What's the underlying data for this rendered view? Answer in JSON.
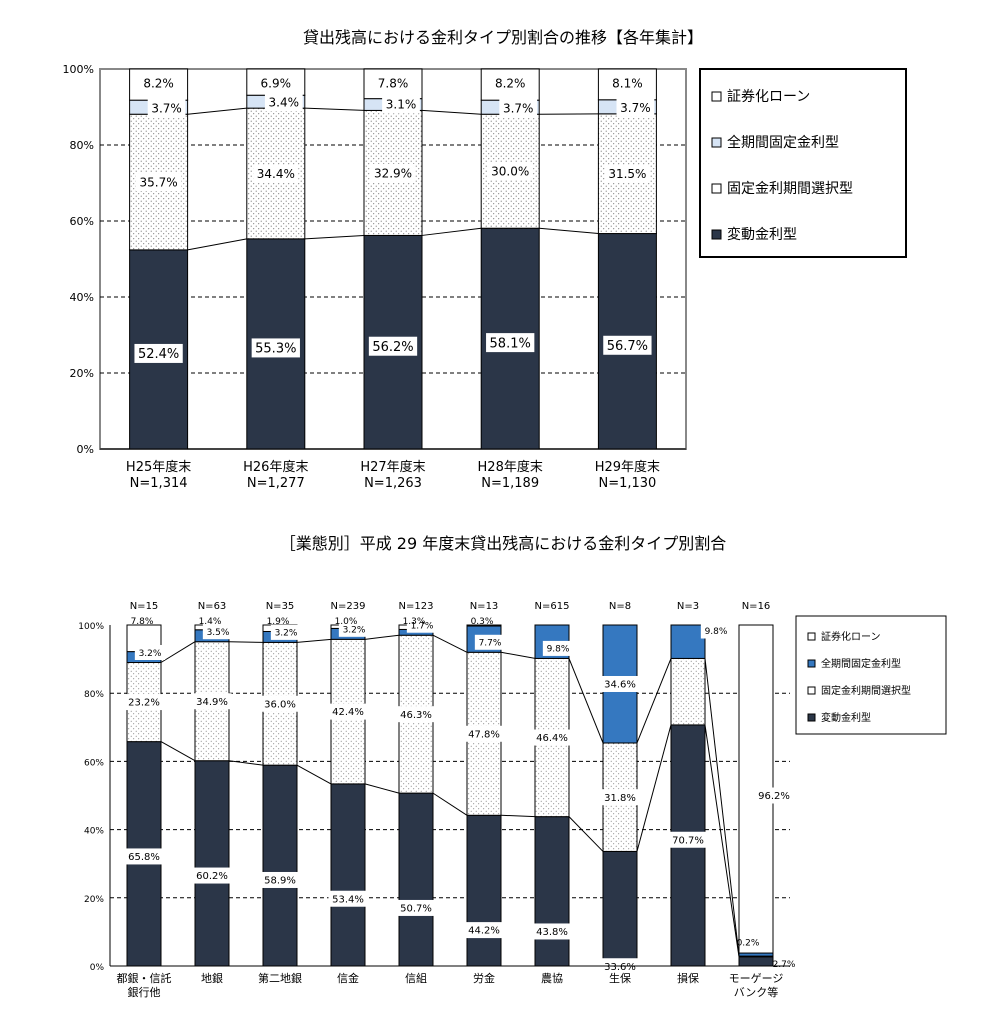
{
  "chart_data": [
    {
      "type": "bar",
      "stacked": true,
      "title": "貸出残高における金利タイプ別割合の推移【各年集計】",
      "categories": [
        "H25年度末",
        "H26年度末",
        "H27年度末",
        "H28年度末",
        "H29年度末"
      ],
      "n_labels": [
        "N=1,314",
        "N=1,277",
        "N=1,263",
        "N=1,189",
        "N=1,130"
      ],
      "y_ticks": [
        "0%",
        "20%",
        "40%",
        "60%",
        "80%",
        "100%"
      ],
      "ylim": [
        0,
        100
      ],
      "grid": true,
      "legend_position": "right",
      "series": [
        {
          "name": "変動金利型",
          "values": [
            52.4,
            55.3,
            56.2,
            58.1,
            56.7
          ],
          "labels": [
            "52.4%",
            "55.3%",
            "56.2%",
            "58.1%",
            "56.7%"
          ]
        },
        {
          "name": "固定金利期間選択型",
          "values": [
            35.7,
            34.4,
            32.9,
            30.0,
            31.5
          ],
          "labels": [
            "35.7%",
            "34.4%",
            "32.9%",
            "30.0%",
            "31.5%"
          ]
        },
        {
          "name": "全期間固定金利型",
          "values": [
            3.7,
            3.4,
            3.1,
            3.7,
            3.7
          ],
          "labels": [
            "3.7%",
            "3.4%",
            "3.1%",
            "3.7%",
            "3.7%"
          ]
        },
        {
          "name": "証券化ローン",
          "values": [
            8.2,
            6.9,
            7.8,
            8.2,
            8.1
          ],
          "labels": [
            "8.2%",
            "6.9%",
            "7.8%",
            "8.2%",
            "8.1%"
          ]
        }
      ],
      "colors": {
        "floating": "#2b3648",
        "fixed_period": "#ffffff",
        "full_fixed": "#d6e4f5",
        "securitized": "#ffffff"
      }
    },
    {
      "type": "bar",
      "stacked": true,
      "title": "［業態別］平成 29 年度末貸出残高における金利タイプ別割合",
      "categories": [
        "都銀・信託\n銀行他",
        "地銀",
        "第二地銀",
        "信金",
        "信組",
        "労金",
        "農協",
        "生保",
        "損保",
        "モーゲージ\nバンク等"
      ],
      "n_labels": [
        "N=15",
        "N=63",
        "N=35",
        "N=239",
        "N=123",
        "N=13",
        "N=615",
        "N=8",
        "N=3",
        "N=16"
      ],
      "y_ticks": [
        "0%",
        "20%",
        "40%",
        "60%",
        "80%",
        "100%"
      ],
      "ylim": [
        0,
        100
      ],
      "grid": true,
      "legend_position": "right",
      "series": [
        {
          "name": "変動金利型",
          "values": [
            65.8,
            60.2,
            58.9,
            53.4,
            50.7,
            44.2,
            43.8,
            33.6,
            70.7,
            2.7
          ],
          "labels": [
            "65.8%",
            "60.2%",
            "58.9%",
            "53.4%",
            "50.7%",
            "44.2%",
            "43.8%",
            "33.6%",
            "70.7%",
            "2.7%"
          ]
        },
        {
          "name": "固定金利期間選択型",
          "values": [
            23.2,
            34.9,
            36.0,
            42.4,
            46.3,
            47.8,
            46.4,
            31.8,
            19.5,
            0.2
          ],
          "labels": [
            "23.2%",
            "34.9%",
            "36.0%",
            "42.4%",
            "46.3%",
            "47.8%",
            "46.4%",
            "31.8%",
            "",
            "0.2%"
          ]
        },
        {
          "name": "全期間固定金利型",
          "values": [
            3.2,
            3.5,
            3.2,
            3.2,
            1.7,
            7.7,
            9.8,
            34.6,
            9.8,
            0.9
          ],
          "labels": [
            "3.2%",
            "3.5%",
            "3.2%",
            "3.2%",
            "1.7%",
            "7.7%",
            "9.8%",
            "34.6%",
            "9.8%",
            ""
          ]
        },
        {
          "name": "証券化ローン",
          "values": [
            7.8,
            1.4,
            1.9,
            1.0,
            1.3,
            0.3,
            0.0,
            0.0,
            0.0,
            96.2
          ],
          "labels": [
            "7.8%",
            "1.4%",
            "1.9%",
            "1.0%",
            "1.3%",
            "0.3%",
            "",
            "",
            "",
            "96.2%"
          ]
        }
      ],
      "colors": {
        "floating": "#2b3648",
        "fixed_period": "#ffffff",
        "full_fixed": "#3578c0",
        "securitized": "#ffffff"
      }
    }
  ]
}
